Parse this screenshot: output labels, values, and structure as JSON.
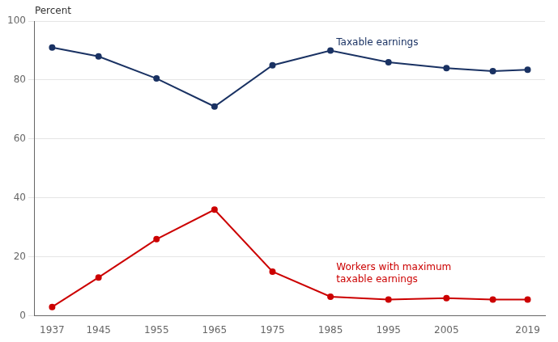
{
  "chart_data": {
    "type": "line",
    "ylabel": "Percent",
    "x": [
      1937,
      1945,
      1955,
      1965,
      1975,
      1985,
      1995,
      2005,
      2013,
      2019
    ],
    "series": [
      {
        "color": "#1a3263",
        "marker": "circle",
        "line_style": "solid",
        "values": [
          91,
          88,
          80.5,
          71,
          85,
          90,
          86,
          84,
          83,
          83.5
        ]
      },
      {
        "color": "#cc0000",
        "marker": "circle",
        "line_style": "solid",
        "values": [
          3,
          13,
          26,
          36,
          15,
          6.5,
          5.5,
          6,
          5.5,
          5.5
        ]
      }
    ],
    "annotations": [
      {
        "text": "Taxable earnings",
        "x": 1986,
        "y": 92.5,
        "color": "#1a3263"
      },
      {
        "text": "Workers with maximum\ntaxable earnings",
        "x": 1986,
        "y": 18,
        "color": "#cc0000"
      }
    ],
    "xlim": [
      1934,
      2022
    ],
    "xticks": [
      1937,
      1945,
      1955,
      1965,
      1975,
      1985,
      1995,
      2005,
      2019
    ],
    "ylim": [
      0,
      100
    ],
    "yticks": [
      0,
      20,
      40,
      60,
      80,
      100
    ],
    "grid": "y",
    "legend": "none"
  }
}
